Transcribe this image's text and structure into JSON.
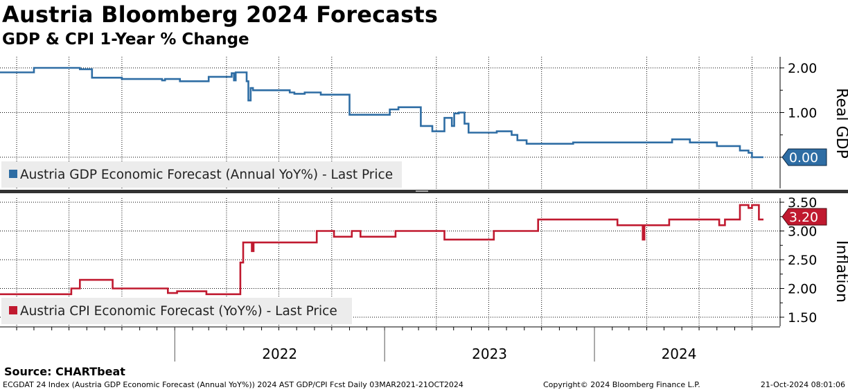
{
  "header": {
    "title": "Austria Bloomberg 2024 Forecasts",
    "subtitle": "GDP & CPI 1-Year % Change"
  },
  "footer": {
    "source": "Source: CHARTbeat",
    "left": "ECGDAT 24 Index (Austria GDP Economic Forecast (Annual YoY%)) 2024 AST GDP/CPI Fcst  Daily 03MAR2021-21OCT2024",
    "middle": "Copyright© 2024 Bloomberg Finance L.P.",
    "right": "21-Oct-2024 08:01:06"
  },
  "colors": {
    "gdp": "#2e6da4",
    "cpi": "#c0192f",
    "grid": "#000000",
    "panel_separator": "#333333",
    "legend_bg": "#ececec"
  },
  "chart_data": [
    {
      "type": "line",
      "panel": "top",
      "ylabel": "Real GDP",
      "ylim": [
        -0.2,
        2.2
      ],
      "yticks": [
        "2.00",
        "1.00",
        "0.00"
      ],
      "last_value_label": "0.00",
      "legend": "Austria GDP Economic Forecast (Annual YoY%) - Last Price",
      "legend_position": "bottom-left",
      "grid": true,
      "x_range": [
        "2021-03-03",
        "2024-10-21"
      ],
      "x_tick_labels": [
        "2022",
        "2023",
        "2024"
      ],
      "series": [
        {
          "name": "Austria GDP Economic Forecast (Annual YoY%) - Last Price",
          "points": [
            [
              "2021-03-03",
              1.9
            ],
            [
              "2021-05-01",
              1.9
            ],
            [
              "2021-05-01",
              2.0
            ],
            [
              "2021-07-20",
              2.0
            ],
            [
              "2021-07-20",
              1.97
            ],
            [
              "2021-08-10",
              1.97
            ],
            [
              "2021-08-10",
              1.78
            ],
            [
              "2021-10-01",
              1.78
            ],
            [
              "2021-10-01",
              1.75
            ],
            [
              "2021-12-10",
              1.75
            ],
            [
              "2021-12-10",
              1.72
            ],
            [
              "2021-12-15",
              1.72
            ],
            [
              "2021-12-15",
              1.75
            ],
            [
              "2022-01-10",
              1.75
            ],
            [
              "2022-01-10",
              1.7
            ],
            [
              "2022-03-01",
              1.7
            ],
            [
              "2022-03-01",
              1.8
            ],
            [
              "2022-04-10",
              1.8
            ],
            [
              "2022-04-10",
              1.88
            ],
            [
              "2022-04-14",
              1.88
            ],
            [
              "2022-04-14",
              1.72
            ],
            [
              "2022-04-17",
              1.72
            ],
            [
              "2022-04-17",
              1.9
            ],
            [
              "2022-05-06",
              1.9
            ],
            [
              "2022-05-06",
              1.7
            ],
            [
              "2022-05-09",
              1.7
            ],
            [
              "2022-05-09",
              1.27
            ],
            [
              "2022-05-13",
              1.27
            ],
            [
              "2022-05-13",
              1.55
            ],
            [
              "2022-05-17",
              1.55
            ],
            [
              "2022-05-17",
              1.5
            ],
            [
              "2022-07-20",
              1.5
            ],
            [
              "2022-07-20",
              1.45
            ],
            [
              "2022-07-28",
              1.45
            ],
            [
              "2022-07-28",
              1.42
            ],
            [
              "2022-08-15",
              1.42
            ],
            [
              "2022-08-15",
              1.45
            ],
            [
              "2022-09-12",
              1.45
            ],
            [
              "2022-09-12",
              1.4
            ],
            [
              "2022-11-01",
              1.4
            ],
            [
              "2022-11-01",
              0.95
            ],
            [
              "2023-01-10",
              0.95
            ],
            [
              "2023-01-10",
              1.07
            ],
            [
              "2023-01-25",
              1.07
            ],
            [
              "2023-01-25",
              1.12
            ],
            [
              "2023-03-05",
              1.12
            ],
            [
              "2023-03-05",
              0.7
            ],
            [
              "2023-03-25",
              0.7
            ],
            [
              "2023-03-25",
              0.58
            ],
            [
              "2023-04-15",
              0.58
            ],
            [
              "2023-04-15",
              0.88
            ],
            [
              "2023-04-28",
              0.88
            ],
            [
              "2023-04-28",
              0.7
            ],
            [
              "2023-05-02",
              0.7
            ],
            [
              "2023-05-02",
              0.98
            ],
            [
              "2023-05-10",
              0.98
            ],
            [
              "2023-05-10",
              1.0
            ],
            [
              "2023-05-20",
              1.0
            ],
            [
              "2023-05-20",
              0.75
            ],
            [
              "2023-05-27",
              0.75
            ],
            [
              "2023-05-27",
              0.55
            ],
            [
              "2023-07-15",
              0.55
            ],
            [
              "2023-07-15",
              0.58
            ],
            [
              "2023-08-10",
              0.58
            ],
            [
              "2023-08-10",
              0.5
            ],
            [
              "2023-08-20",
              0.5
            ],
            [
              "2023-08-20",
              0.38
            ],
            [
              "2023-09-05",
              0.38
            ],
            [
              "2023-09-05",
              0.3
            ],
            [
              "2023-11-25",
              0.3
            ],
            [
              "2023-11-25",
              0.33
            ],
            [
              "2024-05-15",
              0.33
            ],
            [
              "2024-05-15",
              0.4
            ],
            [
              "2024-06-15",
              0.4
            ],
            [
              "2024-06-15",
              0.33
            ],
            [
              "2024-08-01",
              0.33
            ],
            [
              "2024-08-01",
              0.25
            ],
            [
              "2024-09-10",
              0.25
            ],
            [
              "2024-09-10",
              0.15
            ],
            [
              "2024-09-25",
              0.15
            ],
            [
              "2024-09-25",
              0.1
            ],
            [
              "2024-10-01",
              0.1
            ],
            [
              "2024-10-01",
              0.0
            ],
            [
              "2024-10-21",
              0.0
            ]
          ]
        }
      ]
    },
    {
      "type": "line",
      "panel": "bottom",
      "ylabel": "Inflation",
      "ylim": [
        1.4,
        3.6
      ],
      "yticks": [
        "3.50",
        "3.00",
        "2.50",
        "2.00",
        "1.50"
      ],
      "last_value_label": "3.20",
      "legend": "Austria CPI Economic Forecast (YoY%) - Last Price",
      "legend_position": "bottom-left",
      "grid": true,
      "x_range": [
        "2021-03-03",
        "2024-10-21"
      ],
      "x_tick_labels": [
        "2022",
        "2023",
        "2024"
      ],
      "series": [
        {
          "name": "Austria CPI Economic Forecast (YoY%) - Last Price",
          "points": [
            [
              "2021-03-03",
              1.9
            ],
            [
              "2021-07-05",
              1.9
            ],
            [
              "2021-07-05",
              2.0
            ],
            [
              "2021-07-20",
              2.0
            ],
            [
              "2021-07-20",
              2.15
            ],
            [
              "2021-09-15",
              2.15
            ],
            [
              "2021-09-15",
              2.0
            ],
            [
              "2021-12-20",
              2.0
            ],
            [
              "2021-12-20",
              1.92
            ],
            [
              "2022-01-05",
              1.92
            ],
            [
              "2022-01-05",
              1.95
            ],
            [
              "2022-02-25",
              1.95
            ],
            [
              "2022-02-25",
              1.9
            ],
            [
              "2022-04-25",
              1.9
            ],
            [
              "2022-04-25",
              2.45
            ],
            [
              "2022-04-30",
              2.45
            ],
            [
              "2022-04-30",
              2.8
            ],
            [
              "2022-05-15",
              2.8
            ],
            [
              "2022-05-15",
              2.65
            ],
            [
              "2022-05-18",
              2.65
            ],
            [
              "2022-05-18",
              2.8
            ],
            [
              "2022-09-05",
              2.8
            ],
            [
              "2022-09-05",
              3.0
            ],
            [
              "2022-10-05",
              3.0
            ],
            [
              "2022-10-05",
              2.9
            ],
            [
              "2022-11-05",
              2.9
            ],
            [
              "2022-11-05",
              3.0
            ],
            [
              "2022-11-20",
              3.0
            ],
            [
              "2022-11-20",
              2.9
            ],
            [
              "2023-01-20",
              2.9
            ],
            [
              "2023-01-20",
              3.0
            ],
            [
              "2023-04-15",
              3.0
            ],
            [
              "2023-04-15",
              2.85
            ],
            [
              "2023-07-10",
              2.85
            ],
            [
              "2023-07-10",
              3.0
            ],
            [
              "2023-09-25",
              3.0
            ],
            [
              "2023-09-25",
              3.2
            ],
            [
              "2024-02-10",
              3.2
            ],
            [
              "2024-02-10",
              3.1
            ],
            [
              "2024-03-25",
              3.1
            ],
            [
              "2024-03-25",
              2.85
            ],
            [
              "2024-03-28",
              2.85
            ],
            [
              "2024-03-28",
              3.1
            ],
            [
              "2024-05-10",
              3.1
            ],
            [
              "2024-05-10",
              3.2
            ],
            [
              "2024-08-05",
              3.2
            ],
            [
              "2024-08-05",
              3.1
            ],
            [
              "2024-08-15",
              3.1
            ],
            [
              "2024-08-15",
              3.2
            ],
            [
              "2024-09-10",
              3.2
            ],
            [
              "2024-09-10",
              3.45
            ],
            [
              "2024-09-25",
              3.45
            ],
            [
              "2024-09-25",
              3.4
            ],
            [
              "2024-10-01",
              3.4
            ],
            [
              "2024-10-01",
              3.45
            ],
            [
              "2024-10-13",
              3.45
            ],
            [
              "2024-10-13",
              3.2
            ],
            [
              "2024-10-21",
              3.2
            ]
          ]
        }
      ]
    }
  ]
}
